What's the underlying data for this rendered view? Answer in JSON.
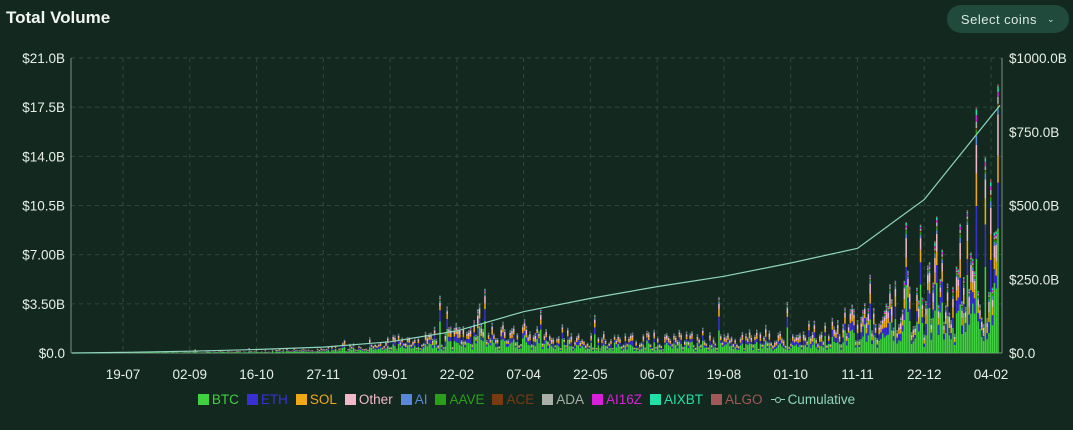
{
  "header": {
    "title": "Total Volume",
    "select_label": "Select coins"
  },
  "chart_data": {
    "type": "bar",
    "stacked": true,
    "title": "Total Volume",
    "x_tick_labels": [
      "19-07",
      "02-09",
      "16-10",
      "27-11",
      "09-01",
      "22-02",
      "07-04",
      "22-05",
      "06-07",
      "19-08",
      "01-10",
      "11-11",
      "22-12",
      "04-02"
    ],
    "y_left": {
      "ticks": [
        "$0.0",
        "$3.50B",
        "$7.00B",
        "$10.5B",
        "$14.0B",
        "$17.5B",
        "$21.0B"
      ],
      "ylim": [
        0,
        21.0
      ],
      "unit": "$B"
    },
    "y_right": {
      "ticks": [
        "$0.0",
        "$250.0B",
        "$500.0B",
        "$750.0B",
        "$1000.0B"
      ],
      "ylim": [
        0,
        1000
      ],
      "unit": "$B"
    },
    "grid": true,
    "legend_position": "bottom",
    "series": [
      {
        "name": "BTC",
        "color": "#3fd13f"
      },
      {
        "name": "ETH",
        "color": "#3a2fd1"
      },
      {
        "name": "SOL",
        "color": "#f0a818"
      },
      {
        "name": "Other",
        "color": "#f0b8c8"
      },
      {
        "name": "AI",
        "color": "#5a88d8"
      },
      {
        "name": "AAVE",
        "color": "#2aa018"
      },
      {
        "name": "ACE",
        "color": "#7a3a10"
      },
      {
        "name": "ADA",
        "color": "#a8b0a8"
      },
      {
        "name": "AI16Z",
        "color": "#d820d8"
      },
      {
        "name": "AIXBT",
        "color": "#20e0a8"
      },
      {
        "name": "ALGO",
        "color": "#a05858"
      }
    ],
    "total_volume_daily_B": {
      "description_periods": [
        "19-07",
        "02-09",
        "16-10",
        "27-11",
        "09-01",
        "22-02",
        "07-04",
        "22-05",
        "06-07",
        "19-08",
        "01-10",
        "11-11",
        "22-12",
        "04-02"
      ],
      "typical_level_B": [
        0.05,
        0.1,
        0.15,
        0.3,
        0.7,
        1.6,
        1.4,
        1.0,
        1.0,
        1.1,
        1.2,
        2.2,
        4.0,
        6.0
      ],
      "peaks_B": [
        {
          "x": "27-02",
          "value": 3.5
        },
        {
          "x": "03-04",
          "value": 2.7
        },
        {
          "x": "12-08",
          "value": 4.2
        },
        {
          "x": "24-11",
          "value": 5.0
        },
        {
          "x": "07-12",
          "value": 9.0
        },
        {
          "x": "14-12",
          "value": 10.0
        },
        {
          "x": "27-01",
          "value": 17.5
        },
        {
          "x": "04-02",
          "value": 18.2
        }
      ]
    },
    "cumulative": {
      "name": "Cumulative",
      "color": "#8fd5c0",
      "points_B": [
        {
          "x": "05-07",
          "value": 0
        },
        {
          "x": "19-07",
          "value": 2
        },
        {
          "x": "02-09",
          "value": 6
        },
        {
          "x": "16-10",
          "value": 12
        },
        {
          "x": "27-11",
          "value": 20
        },
        {
          "x": "09-01",
          "value": 38
        },
        {
          "x": "22-02",
          "value": 75
        },
        {
          "x": "07-04",
          "value": 140
        },
        {
          "x": "22-05",
          "value": 185
        },
        {
          "x": "06-07",
          "value": 225
        },
        {
          "x": "19-08",
          "value": 260
        },
        {
          "x": "01-10",
          "value": 305
        },
        {
          "x": "11-11",
          "value": 355
        },
        {
          "x": "22-12",
          "value": 520
        },
        {
          "x": "04-02",
          "value": 840
        }
      ]
    }
  }
}
